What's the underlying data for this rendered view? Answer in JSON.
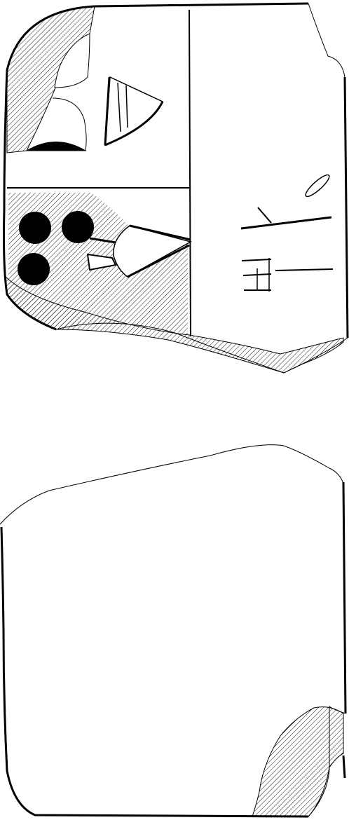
{
  "drawing": {
    "line_color": "#000000",
    "hatch_color": "#000000",
    "background_color": "#ffffff",
    "texture": "diagonal-hatch",
    "components": [
      "obverse-face",
      "reverse-face"
    ],
    "obverse_signs": [
      "head-profile-sign",
      "triangular-sign",
      "numeral-circles",
      "wedge-sign",
      "cuneiform-wedges"
    ],
    "numeral_circle_count": 3,
    "reverse_contents": "blank"
  }
}
